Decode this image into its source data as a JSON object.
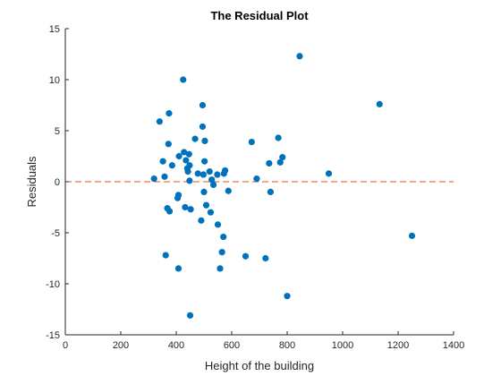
{
  "chart_data": {
    "type": "scatter",
    "title": "The Residual Plot",
    "xlabel": "Height of the building",
    "ylabel": "Residuals",
    "xlim": [
      0,
      1400
    ],
    "ylim": [
      -15,
      15
    ],
    "xticks": [
      0,
      200,
      400,
      600,
      800,
      1000,
      1200,
      1400
    ],
    "yticks": [
      -15,
      -10,
      -5,
      0,
      5,
      10,
      15
    ],
    "grid": false,
    "legend": "none",
    "reference_line": {
      "y": 0,
      "style": "dashed",
      "color": "#D95319"
    },
    "marker_color": "#0072BD",
    "points": [
      {
        "x": 320,
        "y": 0.3
      },
      {
        "x": 340,
        "y": 5.9
      },
      {
        "x": 352,
        "y": 2.0
      },
      {
        "x": 358,
        "y": 0.5
      },
      {
        "x": 362,
        "y": -7.2
      },
      {
        "x": 368,
        "y": -2.6
      },
      {
        "x": 372,
        "y": 3.7
      },
      {
        "x": 374,
        "y": 6.7
      },
      {
        "x": 376,
        "y": -2.9
      },
      {
        "x": 385,
        "y": 1.6
      },
      {
        "x": 405,
        "y": -1.6
      },
      {
        "x": 408,
        "y": -1.3
      },
      {
        "x": 408,
        "y": -8.5
      },
      {
        "x": 410,
        "y": 2.5
      },
      {
        "x": 425,
        "y": 10.0
      },
      {
        "x": 428,
        "y": 2.9
      },
      {
        "x": 432,
        "y": -2.5
      },
      {
        "x": 435,
        "y": 2.1
      },
      {
        "x": 440,
        "y": 1.3
      },
      {
        "x": 442,
        "y": 1.0
      },
      {
        "x": 446,
        "y": 2.7
      },
      {
        "x": 448,
        "y": 0.1
      },
      {
        "x": 448,
        "y": 1.6
      },
      {
        "x": 450,
        "y": -13.1
      },
      {
        "x": 452,
        "y": -2.7
      },
      {
        "x": 468,
        "y": 4.2
      },
      {
        "x": 478,
        "y": 0.8
      },
      {
        "x": 490,
        "y": -3.8
      },
      {
        "x": 495,
        "y": 7.5
      },
      {
        "x": 495,
        "y": 5.4
      },
      {
        "x": 498,
        "y": 0.7
      },
      {
        "x": 500,
        "y": -1.0
      },
      {
        "x": 502,
        "y": 2.0
      },
      {
        "x": 503,
        "y": 4.0
      },
      {
        "x": 508,
        "y": -2.3
      },
      {
        "x": 520,
        "y": 1.0
      },
      {
        "x": 524,
        "y": -3.0
      },
      {
        "x": 528,
        "y": 0.2
      },
      {
        "x": 534,
        "y": -0.3
      },
      {
        "x": 548,
        "y": 0.7
      },
      {
        "x": 550,
        "y": -4.2
      },
      {
        "x": 558,
        "y": -8.5
      },
      {
        "x": 565,
        "y": -6.9
      },
      {
        "x": 570,
        "y": -5.4
      },
      {
        "x": 572,
        "y": 0.8
      },
      {
        "x": 576,
        "y": 1.1
      },
      {
        "x": 588,
        "y": -0.9
      },
      {
        "x": 650,
        "y": -7.3
      },
      {
        "x": 672,
        "y": 3.9
      },
      {
        "x": 690,
        "y": 0.3
      },
      {
        "x": 722,
        "y": -7.5
      },
      {
        "x": 735,
        "y": 1.8
      },
      {
        "x": 740,
        "y": -1.0
      },
      {
        "x": 768,
        "y": 4.3
      },
      {
        "x": 775,
        "y": 1.9
      },
      {
        "x": 783,
        "y": 2.4
      },
      {
        "x": 800,
        "y": -11.2
      },
      {
        "x": 845,
        "y": 12.3
      },
      {
        "x": 950,
        "y": 0.8
      },
      {
        "x": 1133,
        "y": 7.6
      },
      {
        "x": 1250,
        "y": -5.3
      }
    ]
  }
}
